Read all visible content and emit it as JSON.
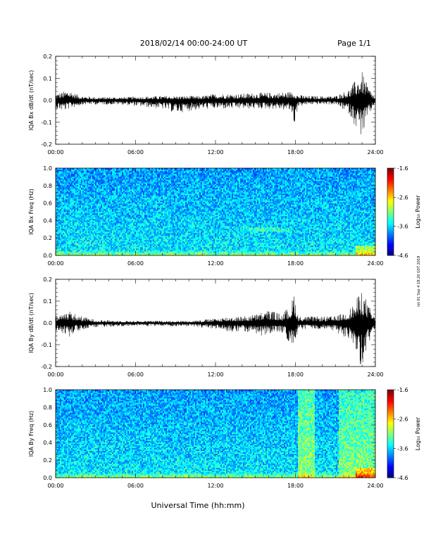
{
  "header": {
    "title": "2018/02/14  00:00-24:00 UT",
    "page": "Page 1/1"
  },
  "xaxis": {
    "label": "Universal Time (hh:mm)",
    "ticks": [
      "00:00",
      "06:00",
      "12:00",
      "18:00",
      "24:00"
    ]
  },
  "side_note": "rot 01 Sep 4 18:20 GST 2019",
  "colors": {
    "trace": "#000000",
    "background": "#ffffff"
  },
  "chart_data": [
    {
      "type": "line",
      "ylabel": "IQA Bx dB/dt (nT/sec)",
      "ylim": [
        -0.2,
        0.2
      ],
      "yticks": [
        "-0.2",
        "-0.1",
        "0.0",
        "0.1",
        "0.2"
      ],
      "xlim_hours": [
        0,
        24
      ],
      "envelope": {
        "x_hours": [
          0,
          0.6,
          1.0,
          1.5,
          2.0,
          3,
          5,
          8,
          9,
          11,
          12,
          14,
          15,
          16.5,
          17.7,
          17.9,
          18.2,
          19,
          20,
          21,
          22,
          22.5,
          23,
          23.5,
          24
        ],
        "upper": [
          0.03,
          0.04,
          0.05,
          0.03,
          0.02,
          0.015,
          0.015,
          0.02,
          0.02,
          0.02,
          0.03,
          0.03,
          0.035,
          0.035,
          0.04,
          0.045,
          0.025,
          0.02,
          0.02,
          0.02,
          0.05,
          0.09,
          0.13,
          0.06,
          0.01
        ],
        "lower": [
          -0.04,
          -0.05,
          -0.04,
          -0.03,
          -0.02,
          -0.02,
          -0.02,
          -0.04,
          -0.06,
          -0.04,
          -0.04,
          -0.04,
          -0.04,
          -0.04,
          -0.05,
          -0.12,
          -0.03,
          -0.02,
          -0.02,
          -0.02,
          -0.06,
          -0.12,
          -0.17,
          -0.08,
          -0.01
        ]
      }
    },
    {
      "type": "heatmap",
      "ylabel": "IQA Bx Freq (Hz)",
      "ylim": [
        0.0,
        1.0
      ],
      "yticks": [
        "0.0",
        "0.2",
        "0.4",
        "0.6",
        "0.8",
        "1.0"
      ],
      "colorbar": {
        "label": "Log₁₀ Power",
        "ticks": [
          "-1.6",
          "-2.6",
          "-3.6",
          "-4.6"
        ],
        "range": [
          -4.6,
          -1.6
        ]
      }
    },
    {
      "type": "line",
      "ylabel": "IQA By dB/dt (nT/sec)",
      "ylim": [
        -0.2,
        0.2
      ],
      "yticks": [
        "-0.2",
        "-0.1",
        "0.0",
        "0.1",
        "0.2"
      ],
      "xlim_hours": [
        0,
        24
      ],
      "envelope": {
        "x_hours": [
          0,
          0.6,
          1.0,
          1.5,
          2.0,
          3,
          5,
          8,
          10,
          12,
          13,
          14,
          15,
          15.5,
          16,
          17,
          17.7,
          17.9,
          18.2,
          19,
          20,
          21,
          22,
          22.5,
          23,
          23.5,
          24
        ],
        "upper": [
          0.03,
          0.05,
          0.06,
          0.04,
          0.03,
          0.015,
          0.01,
          0.01,
          0.01,
          0.02,
          0.03,
          0.03,
          0.04,
          0.05,
          0.06,
          0.04,
          0.09,
          0.15,
          0.03,
          0.03,
          0.03,
          0.03,
          0.06,
          0.1,
          0.16,
          0.08,
          0.02
        ],
        "lower": [
          -0.04,
          -0.05,
          -0.07,
          -0.04,
          -0.03,
          -0.02,
          -0.015,
          -0.015,
          -0.015,
          -0.03,
          -0.04,
          -0.04,
          -0.05,
          -0.06,
          -0.05,
          -0.05,
          -0.1,
          -0.14,
          -0.03,
          -0.03,
          -0.03,
          -0.04,
          -0.08,
          -0.13,
          -0.22,
          -0.1,
          -0.02
        ]
      }
    },
    {
      "type": "heatmap",
      "ylabel": "IQA By Freq (Hz)",
      "ylim": [
        0.0,
        1.0
      ],
      "yticks": [
        "0.0",
        "0.2",
        "0.4",
        "0.6",
        "0.8",
        "1.0"
      ],
      "colorbar": {
        "label": "Log₁₀ Power",
        "ticks": [
          "-1.6",
          "-2.6",
          "-3.6",
          "-4.6"
        ],
        "range": [
          -4.6,
          -1.6
        ]
      }
    }
  ]
}
